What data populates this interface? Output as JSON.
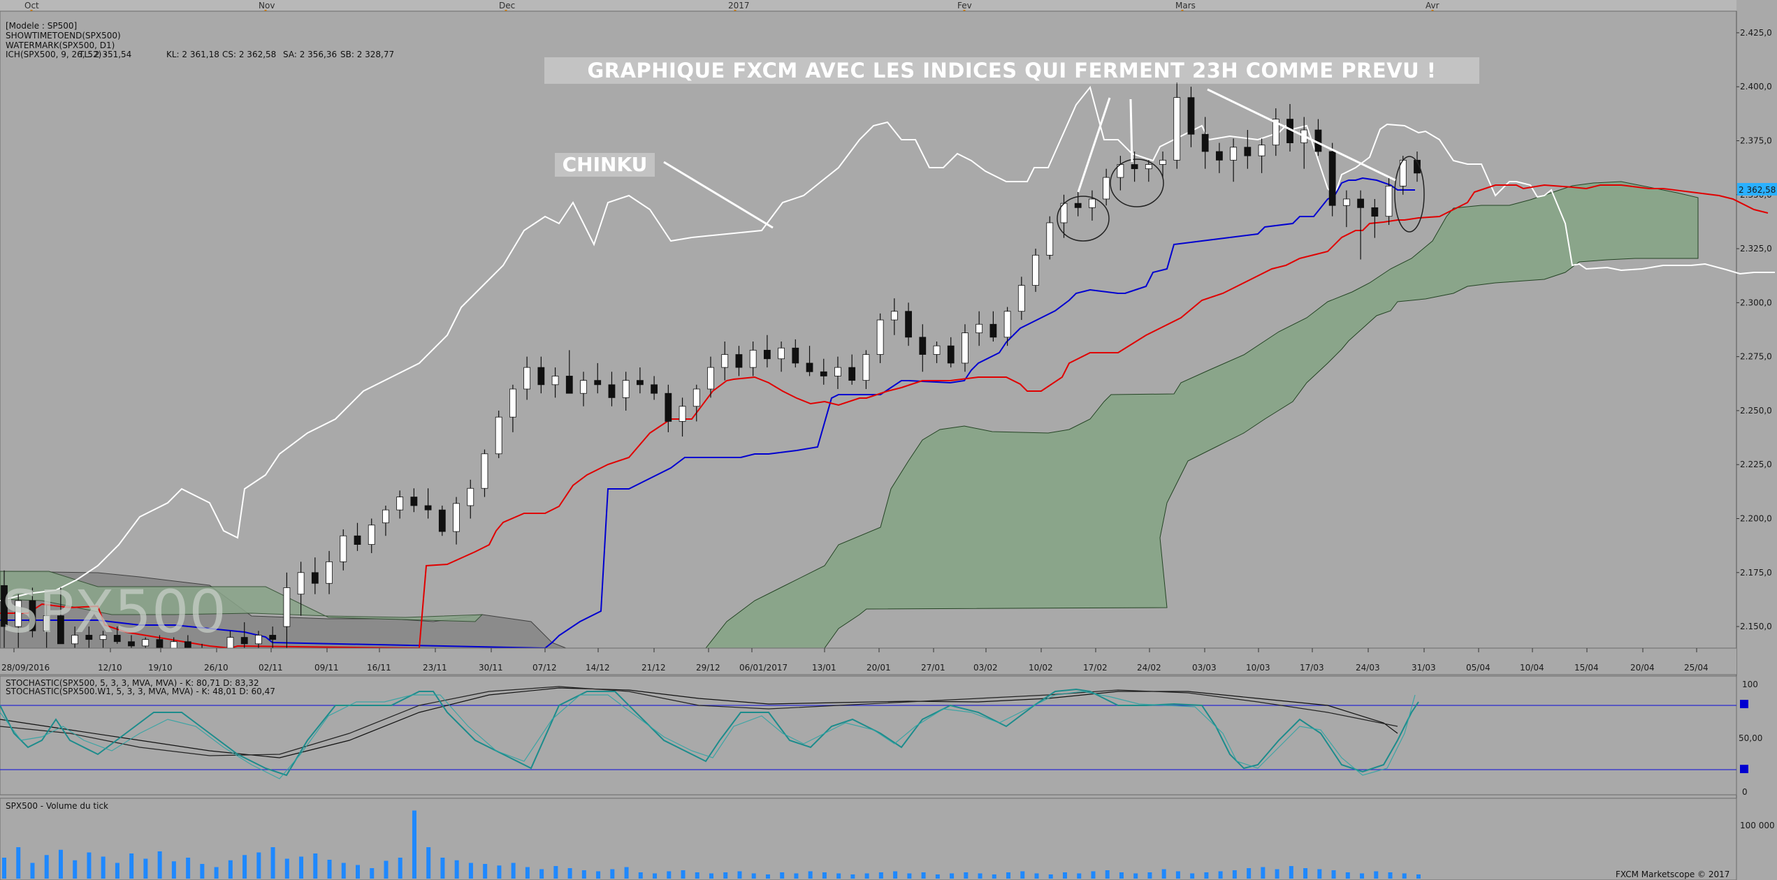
{
  "header": {
    "model": "[Modele : SP500]",
    "showtime": "SHOWTIMETOEND(SPX500)",
    "watermark_study": "WATERMARK(SPX500, D1)",
    "ichimoku_name": "ICH(SPX500, 9, 26, 52) -",
    "tl": "TL: 2 351,54",
    "kl": "KL: 2 361,18",
    "cs": "CS: 2 362,58",
    "sa": "SA: 2 356,36",
    "sb": "SB: 2 328,77"
  },
  "colors": {
    "background": "#a9a9a9",
    "tenkan": "#e00000",
    "kijun": "#0000d0",
    "chikou": "#ffffff",
    "kumo_bull": "#8aa58a",
    "kumo_bear": "#7f7f7f",
    "stoch_fast": "#1d8c8c",
    "stoch_slow": "#101010",
    "volume": "#1e88ff",
    "last_price_bg": "#2ab0ff"
  },
  "annotations": {
    "banner": "GRAPHIQUE  FXCM AVEC LES INDICES QUI FERMENT 23H COMME PREVU !",
    "chinku": "CHINKU",
    "watermark": "SPX500"
  },
  "months": [
    "Oct",
    "Nov",
    "Dec",
    "2017",
    "Fev",
    "Mars",
    "Avr"
  ],
  "date_ticks": [
    "28/09/2016",
    "12/10",
    "19/10",
    "26/10",
    "02/11",
    "09/11",
    "16/11",
    "23/11",
    "30/11",
    "07/12",
    "14/12",
    "21/12",
    "29/12",
    "06/01/2017",
    "13/01",
    "20/01",
    "27/01",
    "03/02",
    "10/02",
    "17/02",
    "24/02",
    "03/03",
    "10/03",
    "17/03",
    "24/03",
    "31/03",
    "05/04",
    "10/04",
    "15/04",
    "20/04",
    "25/04"
  ],
  "price_axis": {
    "ticks": [
      "2.425,0",
      "2.400,0",
      "2.375,0",
      "2.350,0",
      "2.325,0",
      "2.300,0",
      "2.275,0",
      "2.250,0",
      "2.225,0",
      "2.200,0",
      "2.175,0",
      "2.150,0"
    ],
    "last_price": "2 362,58"
  },
  "stochastic": {
    "title1": "STOCHASTIC(SPX500, 5, 3, 3, MVA, MVA) -  K: 80,71  D: 83,32",
    "title2": "STOCHASTIC(SPX500.W1, 5, 3, 3, MVA, MVA) -  K: 48,01  D: 60,47",
    "ticks": [
      "100",
      "50,00",
      "0"
    ]
  },
  "volume": {
    "title": "SPX500 - Volume du tick",
    "tick": "100 000"
  },
  "footer": "FXCM Marketscope © 2017",
  "chart_data": {
    "type": "candlestick",
    "symbol": "SPX500",
    "timeframe": "D1",
    "ylim": [
      2140,
      2435
    ],
    "candles_ohlc": [
      [
        2169,
        2176,
        2140,
        2150
      ],
      [
        2150,
        2165,
        2140,
        2162
      ],
      [
        2162,
        2168,
        2145,
        2148
      ],
      [
        2148,
        2160,
        2138,
        2155
      ],
      [
        2155,
        2168,
        2145,
        2142
      ],
      [
        2142,
        2150,
        2138,
        2146
      ],
      [
        2146,
        2150,
        2140,
        2144
      ],
      [
        2144,
        2148,
        2140,
        2146
      ],
      [
        2146,
        2150,
        2142,
        2143
      ],
      [
        2143,
        2146,
        2138,
        2141
      ],
      [
        2141,
        2145,
        2136,
        2144
      ],
      [
        2144,
        2146,
        2138,
        2140
      ],
      [
        2140,
        2145,
        2134,
        2143
      ],
      [
        2143,
        2146,
        2134,
        2138
      ],
      [
        2138,
        2142,
        2133,
        2136
      ],
      [
        2136,
        2140,
        2130,
        2139
      ],
      [
        2140,
        2148,
        2138,
        2145
      ],
      [
        2145,
        2152,
        2140,
        2142
      ],
      [
        2142,
        2148,
        2138,
        2146
      ],
      [
        2146,
        2150,
        2140,
        2144
      ],
      [
        2150,
        2175,
        2140,
        2168
      ],
      [
        2165,
        2180,
        2155,
        2175
      ],
      [
        2175,
        2182,
        2165,
        2170
      ],
      [
        2170,
        2185,
        2165,
        2180
      ],
      [
        2180,
        2195,
        2176,
        2192
      ],
      [
        2192,
        2198,
        2185,
        2188
      ],
      [
        2188,
        2200,
        2184,
        2197
      ],
      [
        2198,
        2206,
        2192,
        2204
      ],
      [
        2204,
        2213,
        2200,
        2210
      ],
      [
        2210,
        2214,
        2203,
        2206
      ],
      [
        2206,
        2214,
        2200,
        2204
      ],
      [
        2204,
        2206,
        2192,
        2194
      ],
      [
        2194,
        2210,
        2188,
        2207
      ],
      [
        2206,
        2218,
        2200,
        2214
      ],
      [
        2214,
        2232,
        2210,
        2230
      ],
      [
        2230,
        2250,
        2228,
        2247
      ],
      [
        2247,
        2262,
        2240,
        2260
      ],
      [
        2260,
        2275,
        2255,
        2270
      ],
      [
        2270,
        2275,
        2258,
        2262
      ],
      [
        2262,
        2270,
        2256,
        2266
      ],
      [
        2266,
        2278,
        2260,
        2258
      ],
      [
        2258,
        2268,
        2252,
        2264
      ],
      [
        2264,
        2272,
        2258,
        2262
      ],
      [
        2262,
        2268,
        2252,
        2256
      ],
      [
        2256,
        2268,
        2250,
        2264
      ],
      [
        2264,
        2270,
        2258,
        2262
      ],
      [
        2262,
        2266,
        2255,
        2258
      ],
      [
        2258,
        2262,
        2240,
        2245
      ],
      [
        2245,
        2256,
        2238,
        2252
      ],
      [
        2252,
        2262,
        2245,
        2260
      ],
      [
        2260,
        2275,
        2256,
        2270
      ],
      [
        2270,
        2282,
        2264,
        2276
      ],
      [
        2276,
        2280,
        2266,
        2270
      ],
      [
        2270,
        2282,
        2266,
        2278
      ],
      [
        2278,
        2285,
        2270,
        2274
      ],
      [
        2274,
        2282,
        2268,
        2279
      ],
      [
        2279,
        2283,
        2270,
        2272
      ],
      [
        2272,
        2280,
        2266,
        2268
      ],
      [
        2268,
        2274,
        2262,
        2266
      ],
      [
        2266,
        2275,
        2260,
        2270
      ],
      [
        2270,
        2276,
        2262,
        2264
      ],
      [
        2264,
        2278,
        2260,
        2276
      ],
      [
        2276,
        2295,
        2272,
        2292
      ],
      [
        2292,
        2302,
        2285,
        2296
      ],
      [
        2296,
        2300,
        2280,
        2284
      ],
      [
        2284,
        2290,
        2268,
        2276
      ],
      [
        2276,
        2282,
        2272,
        2280
      ],
      [
        2280,
        2284,
        2270,
        2272
      ],
      [
        2272,
        2290,
        2268,
        2286
      ],
      [
        2286,
        2296,
        2280,
        2290
      ],
      [
        2290,
        2296,
        2282,
        2284
      ],
      [
        2284,
        2298,
        2280,
        2296
      ],
      [
        2296,
        2312,
        2292,
        2308
      ],
      [
        2308,
        2325,
        2305,
        2322
      ],
      [
        2322,
        2340,
        2320,
        2337
      ],
      [
        2337,
        2350,
        2330,
        2346
      ],
      [
        2346,
        2352,
        2340,
        2344
      ],
      [
        2344,
        2352,
        2338,
        2348
      ],
      [
        2348,
        2362,
        2345,
        2358
      ],
      [
        2358,
        2368,
        2352,
        2364
      ],
      [
        2364,
        2370,
        2356,
        2362
      ],
      [
        2362,
        2366,
        2356,
        2364
      ],
      [
        2364,
        2370,
        2358,
        2366
      ],
      [
        2366,
        2402,
        2362,
        2395
      ],
      [
        2395,
        2400,
        2372,
        2378
      ],
      [
        2378,
        2386,
        2362,
        2370
      ],
      [
        2370,
        2374,
        2360,
        2366
      ],
      [
        2366,
        2376,
        2356,
        2372
      ],
      [
        2372,
        2380,
        2362,
        2368
      ],
      [
        2368,
        2376,
        2360,
        2373
      ],
      [
        2373,
        2390,
        2368,
        2385
      ],
      [
        2385,
        2392,
        2370,
        2374
      ],
      [
        2374,
        2386,
        2362,
        2380
      ],
      [
        2380,
        2385,
        2368,
        2370
      ],
      [
        2370,
        2374,
        2340,
        2345
      ],
      [
        2345,
        2352,
        2335,
        2348
      ],
      [
        2348,
        2352,
        2320,
        2344
      ],
      [
        2344,
        2348,
        2330,
        2340
      ],
      [
        2340,
        2358,
        2336,
        2354
      ],
      [
        2354,
        2368,
        2350,
        2366
      ],
      [
        2366,
        2370,
        2356,
        2360
      ]
    ],
    "tenkan": [
      2160,
      2160,
      2158,
      2150,
      2146,
      2144,
      2144,
      2143,
      2142,
      2140,
      2140,
      2140,
      2148,
      2150,
      2162,
      2170,
      2175,
      2180,
      2186,
      2192,
      2198,
      2200,
      2198,
      2198,
      2210,
      2225,
      2232,
      2238,
      2248,
      2258,
      2262,
      2262,
      2260,
      2256,
      2256,
      2258,
      2262,
      2264,
      2266,
      2268,
      2268,
      2270,
      2274,
      2278,
      2278,
      2280,
      2282,
      2286,
      2290,
      2300,
      2312,
      2320,
      2326,
      2336,
      2346,
      2354,
      2362,
      2368,
      2372,
      2374,
      2376,
      2376,
      2374,
      2370,
      2366,
      2360,
      2356,
      2352
    ],
    "kijun": [
      2150,
      2150,
      2150,
      2148,
      2148,
      2146,
      2146,
      2144,
      2140,
      2140,
      2150,
      2160,
      2175,
      2215,
      2216,
      2220,
      2228,
      2240,
      2240,
      2245,
      2250,
      2252,
      2256,
      2258,
      2260,
      2264,
      2266,
      2268,
      2270,
      2270,
      2280,
      2292,
      2300,
      2310,
      2318,
      2326,
      2330,
      2334,
      2336,
      2340,
      2344,
      2352,
      2356,
      2364,
      2366,
      2364,
      2362,
      2362
    ],
    "chikou_approx_high": 2395,
    "series": [
      {
        "name": "TL",
        "last": 2351.54
      },
      {
        "name": "KL",
        "last": 2361.18
      },
      {
        "name": "CS",
        "last": 2362.58
      },
      {
        "name": "SA",
        "last": 2356.36
      },
      {
        "name": "SB",
        "last": 2328.77
      }
    ],
    "stoch_k_last": 80.71,
    "stoch_d_last": 83.32,
    "stoch_w1_k_last": 48.01,
    "stoch_w1_d_last": 60.47
  }
}
